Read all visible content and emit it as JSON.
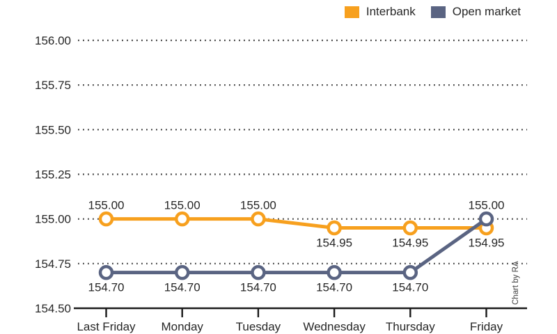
{
  "chart_data": {
    "type": "line",
    "categories": [
      "Last Friday",
      "Monday",
      "Tuesday",
      "Wednesday",
      "Thursday",
      "Friday"
    ],
    "series": [
      {
        "name": "Interbank",
        "color": "#F7A01E",
        "values": [
          155.0,
          155.0,
          155.0,
          154.95,
          154.95,
          154.95
        ],
        "value_labels": [
          "155.00",
          "155.00",
          "155.00",
          "154.95",
          "154.95",
          "154.95"
        ],
        "value_label_positions": [
          "above",
          "above",
          "above",
          "below",
          "below",
          "below"
        ]
      },
      {
        "name": "Open market",
        "color": "#5A6482",
        "values": [
          154.7,
          154.7,
          154.7,
          154.7,
          154.7,
          155.0
        ],
        "value_labels": [
          "154.70",
          "154.70",
          "154.70",
          "154.70",
          "154.70",
          "155.00"
        ],
        "value_label_positions": [
          "below",
          "below",
          "below",
          "below",
          "below",
          "above"
        ]
      }
    ],
    "yticks": [
      "156.00",
      "155.75",
      "155.50",
      "155.25",
      "155.00",
      "154.75",
      "154.50"
    ],
    "ylim": [
      154.5,
      156.0
    ],
    "grid": "horizontal-dotted",
    "legend_position": "top-right",
    "marker_style": "open-circle",
    "credit": "Chart by RA",
    "axis_color": "#1a1a1a",
    "grid_color": "#3c3c3c",
    "text_color": "#262626",
    "marker_fill": "#ffffff"
  }
}
